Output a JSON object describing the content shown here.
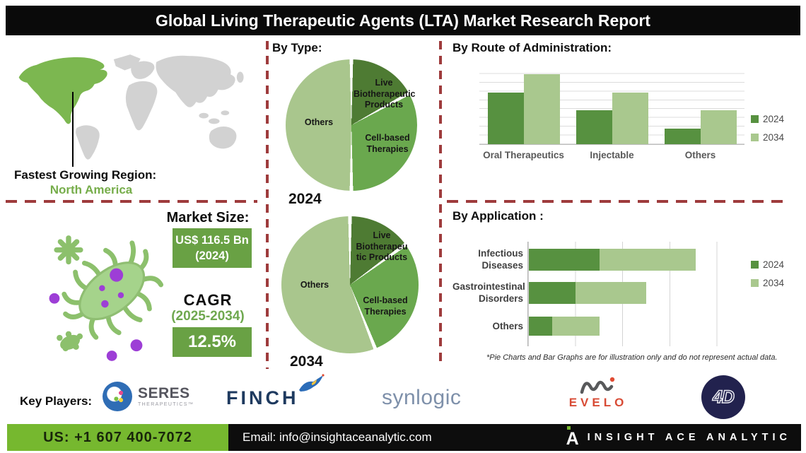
{
  "banner": {
    "title": "Global Living Therapeutic Agents (LTA) Market Research Report"
  },
  "sections": {
    "by_type": "By Type:",
    "by_route": "By  Route of Administration:",
    "by_application": "By Application :"
  },
  "fastest_region": {
    "label": "Fastest Growing Region:",
    "value": "North America"
  },
  "market": {
    "heading": "Market Size:",
    "size_value": "US$ 116.5 Bn",
    "size_year": "(2024)",
    "cagr_label": "CAGR",
    "cagr_period": "(2025-2034)",
    "cagr_value": "12.5%"
  },
  "pie_captions": [
    "2024",
    "2034"
  ],
  "footnote": "*Pie Charts and Bar Graphs are for illustration only and do not represent actual data.",
  "key_players": {
    "label": "Key Players:",
    "players": [
      {
        "name": "SERES",
        "sub": "THERAPEUTICS™"
      },
      {
        "name": "FINCH"
      },
      {
        "name": "synlogic"
      },
      {
        "name": "EVELO"
      },
      {
        "name": "4D"
      }
    ]
  },
  "footer": {
    "phone": "US: +1 607 400-7072",
    "email": "Email: info@insightaceanalytic.com",
    "brand": "INSIGHT ACE ANALYTIC"
  },
  "colors": {
    "pie_dark_green": "#4e7b33",
    "pie_mid_green": "#6aa84e",
    "pie_light_green": "#a9c68d",
    "bar_2024": "#579140",
    "bar_2034": "#a9c88e",
    "dash_red": "#9e3b3c",
    "footer_green": "#76b82f",
    "map_green": "#7cb750",
    "map_gray": "#d2d2d2",
    "microbe_purple": "#9d3ed6"
  },
  "chart_data": [
    {
      "type": "pie",
      "title": "By Type - 2024",
      "labels": [
        "Live Biotherapeutic Products",
        "Cell-based Therapies",
        "Others"
      ],
      "labels_lines": [
        [
          "Live",
          "Biotherapeutic",
          "Products"
        ],
        [
          "Cell-based",
          "Therapies"
        ],
        [
          "Others"
        ]
      ],
      "values": [
        17,
        33,
        50
      ],
      "colors": [
        "#4e7b33",
        "#6aa84e",
        "#a9c68d"
      ],
      "note": "illustrative percentages estimated from slice angles"
    },
    {
      "type": "pie",
      "title": "By Type - 2034",
      "labels": [
        "Live Biotherapeutic Products",
        "Cell-based Therapies",
        "Others"
      ],
      "labels_lines": [
        [
          "Live",
          "Biotherapeu",
          "tic Products"
        ],
        [
          "Cell-based",
          "Therapies"
        ],
        [
          "Others"
        ]
      ],
      "values": [
        15,
        29,
        56
      ],
      "colors": [
        "#4e7b33",
        "#6aa84e",
        "#a9c68d"
      ],
      "note": "illustrative percentages estimated from slice angles"
    },
    {
      "type": "bar",
      "title": "By Route of Administration:",
      "categories": [
        "Oral Therapeutics",
        "Injectable",
        "Others"
      ],
      "series": [
        {
          "name": "2024",
          "color": "#579140",
          "values": [
            65,
            43,
            20
          ]
        },
        {
          "name": "2034",
          "color": "#a9c88e",
          "values": [
            88,
            65,
            43
          ]
        }
      ],
      "ylim": [
        0,
        100
      ],
      "grid": "horizontal",
      "legend_position": "right",
      "note": "illustrative values estimated from bar heights"
    },
    {
      "type": "bar-horizontal-stacked",
      "title": "By Application :",
      "categories": [
        "Infectious Diseases",
        "Gastrointestinal Disorders",
        "Others"
      ],
      "categories_lines": [
        [
          "Infectious",
          "Diseases"
        ],
        [
          "Gastrointestinal",
          "Disorders"
        ],
        [
          "Others"
        ]
      ],
      "series": [
        {
          "name": "2024",
          "color": "#579140",
          "values": [
            30,
            20,
            10
          ]
        },
        {
          "name": "2034",
          "color": "#a9c88e",
          "values": [
            41,
            30,
            20
          ]
        }
      ],
      "xlim": [
        0,
        100
      ],
      "grid": "vertical",
      "legend_position": "right",
      "note": "illustrative values estimated from segment lengths"
    }
  ]
}
